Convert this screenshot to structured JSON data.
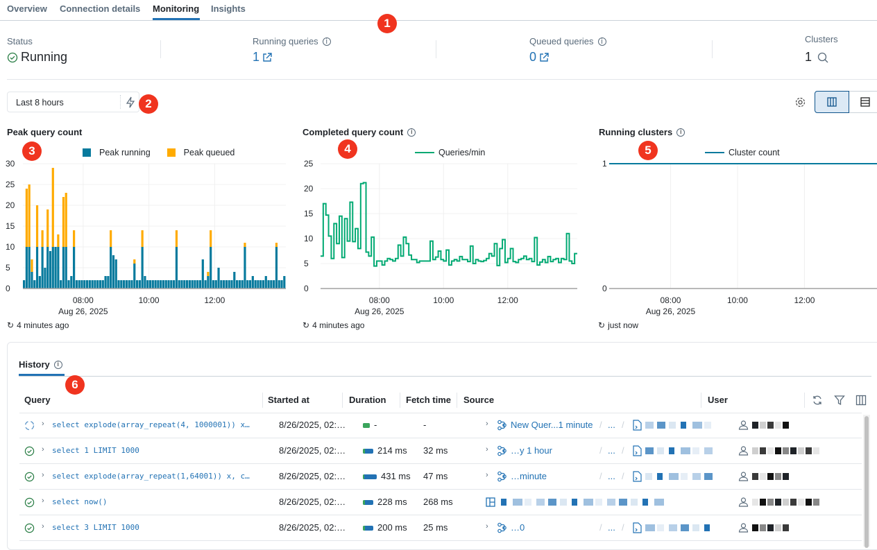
{
  "tabs": [
    {
      "label": "Overview"
    },
    {
      "label": "Connection details"
    },
    {
      "label": "Monitoring",
      "active": true
    },
    {
      "label": "Insights"
    }
  ],
  "summary": {
    "status_label": "Status",
    "status_value": "Running",
    "running_label": "Running queries",
    "running_value": "1",
    "queued_label": "Queued queries",
    "queued_value": "0",
    "clusters_label": "Clusters",
    "clusters_value": "1"
  },
  "toolbar": {
    "time_range": "Last 8 hours",
    "icons": [
      "lightning-icon",
      "gear-icon",
      "columns-layout-icon",
      "rows-layout-icon"
    ]
  },
  "annotations": [
    "1",
    "2",
    "3",
    "4",
    "5",
    "6"
  ],
  "colors": {
    "accent": "#2272b4",
    "running": "#077a9d",
    "queued": "#ffab00",
    "queries_line": "#00a972",
    "success": "#3ba55c",
    "badge": "#f0341f"
  },
  "chart_data": [
    {
      "type": "bar",
      "stacked": true,
      "title": "Peak query count",
      "ylim": [
        0,
        30
      ],
      "yticks": [
        0,
        5,
        10,
        15,
        20,
        25,
        30
      ],
      "x_range": [
        "06:10",
        "14:10"
      ],
      "xticks": [
        "08:00",
        "10:00",
        "12:00"
      ],
      "xdate": "Aug 26, 2025",
      "grid": true,
      "legend": "top-center",
      "series": [
        {
          "name": "Peak running",
          "values": [
            2,
            10,
            10,
            4,
            2,
            10,
            3,
            10,
            5,
            10,
            9,
            10,
            10,
            10,
            2,
            10,
            10,
            2,
            3,
            10,
            2,
            2,
            2,
            2,
            2,
            2,
            2,
            2,
            2,
            2,
            2,
            3,
            3,
            10,
            8,
            7,
            2,
            2,
            2,
            2,
            2,
            2,
            6,
            2,
            2,
            10,
            3,
            2,
            2,
            2,
            2,
            2,
            2,
            2,
            2,
            2,
            2,
            2,
            10,
            2,
            2,
            2,
            2,
            2,
            2,
            2,
            2,
            2,
            7,
            2,
            3,
            10,
            2,
            2,
            5,
            2,
            2,
            2,
            2,
            2,
            4,
            2,
            2,
            2,
            10,
            2,
            2,
            3,
            2,
            2,
            2,
            2,
            3,
            2,
            2,
            2,
            10,
            2,
            2,
            3
          ]
        },
        {
          "name": "Peak queued",
          "values": [
            0,
            14,
            15,
            3,
            0,
            10,
            0,
            4,
            0,
            9,
            0,
            19,
            0,
            3,
            0,
            12,
            13,
            0,
            0,
            4,
            0,
            0,
            0,
            0,
            0,
            0,
            0,
            0,
            0,
            0,
            0,
            0,
            0,
            4,
            0,
            0,
            0,
            0,
            0,
            0,
            0,
            0,
            1,
            0,
            0,
            4,
            0,
            0,
            0,
            0,
            0,
            0,
            0,
            0,
            0,
            0,
            0,
            0,
            4,
            0,
            0,
            0,
            0,
            0,
            0,
            0,
            0,
            0,
            0,
            0,
            1,
            4,
            0,
            0,
            0,
            0,
            0,
            0,
            0,
            0,
            0,
            0,
            0,
            0,
            1,
            0,
            0,
            0,
            0,
            0,
            0,
            0,
            0,
            0,
            0,
            0,
            1,
            0,
            0,
            0
          ]
        }
      ],
      "updated": "4 minutes ago"
    },
    {
      "type": "line",
      "step": true,
      "title": "Completed query count",
      "ylim": [
        0,
        25
      ],
      "yticks": [
        0,
        5,
        10,
        15,
        20,
        25
      ],
      "x_range": [
        "06:10",
        "14:10"
      ],
      "xticks": [
        "08:00",
        "10:00",
        "12:00"
      ],
      "xdate": "Aug 26, 2025",
      "grid": true,
      "legend": "top-center",
      "series": [
        {
          "name": "Queries/min",
          "values": [
            6.5,
            17,
            14.7,
            10.5,
            6,
            13,
            9,
            14.5,
            6.2,
            14,
            9.5,
            17.3,
            9.4,
            12,
            8,
            21,
            21.2,
            7.3,
            6.5,
            10.3,
            4.5,
            5.5,
            5.5,
            4.7,
            5.5,
            6,
            5.8,
            5.5,
            6,
            8.7,
            6.5,
            10.3,
            9,
            6.7,
            5.8,
            5.8,
            5.2,
            5.5,
            5.5,
            5.5,
            5.5,
            9.5,
            5.8,
            6.3,
            7.5,
            5.8,
            5.5,
            7.7,
            4.7,
            5.5,
            5.8,
            5.5,
            6.4,
            5.8,
            5.8,
            5.4,
            8.5,
            5,
            5.8,
            5.5,
            5.4,
            5.6,
            6,
            7,
            6.5,
            9,
            4.6,
            8,
            9.8,
            5.2,
            6,
            8,
            5.4,
            5.2,
            5.8,
            6,
            6.5,
            5.8,
            6,
            5.4,
            10.2,
            4.7,
            5.3,
            5.8,
            5.2,
            6.4,
            5.4,
            5.8,
            6,
            5.2,
            6,
            5.8,
            11,
            5.5,
            5,
            7
          ]
        }
      ],
      "updated": "4 minutes ago"
    },
    {
      "type": "line",
      "title": "Running clusters",
      "ylim": [
        0,
        1
      ],
      "yticks": [
        0,
        1
      ],
      "x_range": [
        "06:10",
        "14:10"
      ],
      "xticks": [
        "08:00",
        "10:00",
        "12:00"
      ],
      "xdate": "Aug 26, 2025",
      "grid": true,
      "legend": "top-center",
      "series": [
        {
          "name": "Cluster count",
          "values": [
            1,
            1
          ]
        }
      ],
      "updated": "just now"
    }
  ],
  "history": {
    "tab": "History",
    "columns": [
      "Query",
      "Started at",
      "Duration",
      "Fetch time",
      "Source",
      "User"
    ],
    "rows": [
      {
        "status": "running",
        "query": "select explode(array_repeat(4, 1000001)) x…",
        "started": "8/26/2025, 02:…",
        "duration": "-",
        "fetch": "-",
        "source_type": "query",
        "source": "New Quer...1 minute",
        "crumb": "...",
        "running_frac": 1
      },
      {
        "status": "success",
        "query": "select 1 LIMIT 1000",
        "started": "8/26/2025, 02:…",
        "duration": "214 ms",
        "fetch": "32 ms",
        "source_type": "query",
        "source": "…y 1 hour",
        "crumb": "...",
        "running_frac": 0.2
      },
      {
        "status": "success",
        "query": "select explode(array_repeat(1,64001)) x, c…",
        "started": "8/26/2025, 02:…",
        "duration": "431 ms",
        "fetch": "47 ms",
        "source_type": "query",
        "source": "…minute",
        "crumb": "...",
        "running_frac": 0.1
      },
      {
        "status": "success",
        "query": "select now()",
        "started": "8/26/2025, 02:…",
        "duration": "228 ms",
        "fetch": "268 ms",
        "source_type": "dashboard",
        "source": "",
        "crumb": "",
        "running_frac": 0.2
      },
      {
        "status": "success",
        "query": "select 3 LIMIT 1000",
        "started": "8/26/2025, 02:…",
        "duration": "200 ms",
        "fetch": "25 ms",
        "source_type": "query",
        "source": "…0",
        "crumb": "...",
        "running_frac": 0.2
      }
    ]
  }
}
